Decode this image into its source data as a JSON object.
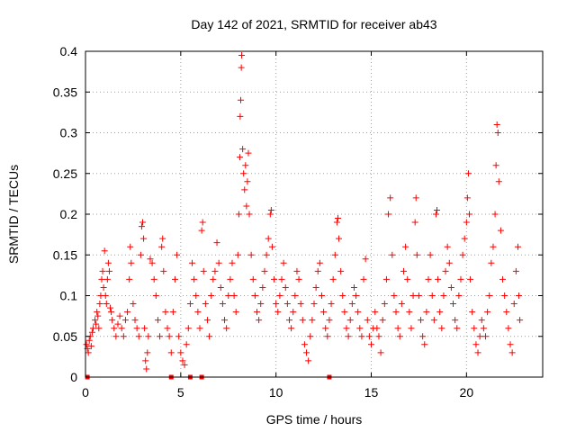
{
  "chart_data": {
    "type": "scatter",
    "title": "Day 142 of 2021, SRMTID for receiver ab43",
    "xlabel": "GPS time / hours",
    "ylabel": "SRMTID / TECUs",
    "xlim": [
      0,
      24
    ],
    "ylim": [
      0,
      0.4
    ],
    "xticks": [
      0,
      5,
      10,
      15,
      20
    ],
    "xtick_labels": [
      "0",
      "5",
      "10",
      "15",
      "20"
    ],
    "yticks": [
      0,
      0.05,
      0.1,
      0.15,
      0.2,
      0.25,
      0.3,
      0.35,
      0.4
    ],
    "ytick_labels": [
      "0",
      "0.05",
      "0.1",
      "0.15",
      "0.2",
      "0.25",
      "0.3",
      "0.35",
      "0.4"
    ],
    "grid": true,
    "marker": "plus",
    "color": "#ff0000",
    "series": [
      {
        "name": "SRMTID",
        "points": [
          [
            0.05,
            0.04
          ],
          [
            0.1,
            0.035
          ],
          [
            0.15,
            0.03
          ],
          [
            0.2,
            0.045
          ],
          [
            0.25,
            0.05
          ],
          [
            0.3,
            0.038
          ],
          [
            0.35,
            0.055
          ],
          [
            0.4,
            0.06
          ],
          [
            0.5,
            0.07
          ],
          [
            0.55,
            0.065
          ],
          [
            0.6,
            0.08
          ],
          [
            0.65,
            0.075
          ],
          [
            0.7,
            0.06
          ],
          [
            0.75,
            0.09
          ],
          [
            0.8,
            0.1
          ],
          [
            0.85,
            0.12
          ],
          [
            0.9,
            0.13
          ],
          [
            0.95,
            0.11
          ],
          [
            1.0,
            0.155
          ],
          [
            1.05,
            0.1
          ],
          [
            1.1,
            0.09
          ],
          [
            1.15,
            0.12
          ],
          [
            1.2,
            0.14
          ],
          [
            1.25,
            0.13
          ],
          [
            1.3,
            0.085
          ],
          [
            1.35,
            0.08
          ],
          [
            1.4,
            0.07
          ],
          [
            1.5,
            0.06
          ],
          [
            1.6,
            0.05
          ],
          [
            1.7,
            0.065
          ],
          [
            1.8,
            0.075
          ],
          [
            1.9,
            0.06
          ],
          [
            2.0,
            0.05
          ],
          [
            2.1,
            0.07
          ],
          [
            2.2,
            0.08
          ],
          [
            2.3,
            0.12
          ],
          [
            2.35,
            0.16
          ],
          [
            2.4,
            0.14
          ],
          [
            2.5,
            0.09
          ],
          [
            2.6,
            0.07
          ],
          [
            2.7,
            0.06
          ],
          [
            2.8,
            0.05
          ],
          [
            2.9,
            0.15
          ],
          [
            2.95,
            0.185
          ],
          [
            3.0,
            0.19
          ],
          [
            3.05,
            0.17
          ],
          [
            3.1,
            0.06
          ],
          [
            3.15,
            0.02
          ],
          [
            3.2,
            0.01
          ],
          [
            3.25,
            0.03
          ],
          [
            3.3,
            0.05
          ],
          [
            3.4,
            0.145
          ],
          [
            3.5,
            0.14
          ],
          [
            3.6,
            0.12
          ],
          [
            3.7,
            0.1
          ],
          [
            3.8,
            0.07
          ],
          [
            3.9,
            0.05
          ],
          [
            4.0,
            0.16
          ],
          [
            4.05,
            0.17
          ],
          [
            4.1,
            0.13
          ],
          [
            4.2,
            0.08
          ],
          [
            4.3,
            0.06
          ],
          [
            4.4,
            0.05
          ],
          [
            4.5,
            0.03
          ],
          [
            4.6,
            0.08
          ],
          [
            4.7,
            0.12
          ],
          [
            4.8,
            0.15
          ],
          [
            4.9,
            0.05
          ],
          [
            5.0,
            0.03
          ],
          [
            5.1,
            0.02
          ],
          [
            5.2,
            0.015
          ],
          [
            5.3,
            0.04
          ],
          [
            5.4,
            0.06
          ],
          [
            5.5,
            0.09
          ],
          [
            5.6,
            0.14
          ],
          [
            5.7,
            0.12
          ],
          [
            5.8,
            0.1
          ],
          [
            5.9,
            0.08
          ],
          [
            6.0,
            0.06
          ],
          [
            6.1,
            0.18
          ],
          [
            6.15,
            0.19
          ],
          [
            6.2,
            0.13
          ],
          [
            6.3,
            0.09
          ],
          [
            6.4,
            0.07
          ],
          [
            6.5,
            0.05
          ],
          [
            6.6,
            0.1
          ],
          [
            6.7,
            0.12
          ],
          [
            6.8,
            0.13
          ],
          [
            6.9,
            0.165
          ],
          [
            7.0,
            0.14
          ],
          [
            7.1,
            0.11
          ],
          [
            7.2,
            0.09
          ],
          [
            7.3,
            0.07
          ],
          [
            7.4,
            0.06
          ],
          [
            7.5,
            0.1
          ],
          [
            7.6,
            0.12
          ],
          [
            7.7,
            0.14
          ],
          [
            7.8,
            0.1
          ],
          [
            7.9,
            0.08
          ],
          [
            8.0,
            0.15
          ],
          [
            8.05,
            0.2
          ],
          [
            8.1,
            0.27
          ],
          [
            8.12,
            0.32
          ],
          [
            8.15,
            0.34
          ],
          [
            8.18,
            0.38
          ],
          [
            8.2,
            0.395
          ],
          [
            8.25,
            0.28
          ],
          [
            8.3,
            0.25
          ],
          [
            8.35,
            0.23
          ],
          [
            8.4,
            0.26
          ],
          [
            8.45,
            0.21
          ],
          [
            8.5,
            0.24
          ],
          [
            8.55,
            0.275
          ],
          [
            8.6,
            0.2
          ],
          [
            8.7,
            0.15
          ],
          [
            8.8,
            0.12
          ],
          [
            8.9,
            0.1
          ],
          [
            9.0,
            0.08
          ],
          [
            9.1,
            0.07
          ],
          [
            9.2,
            0.09
          ],
          [
            9.3,
            0.11
          ],
          [
            9.4,
            0.13
          ],
          [
            9.5,
            0.15
          ],
          [
            9.6,
            0.17
          ],
          [
            9.7,
            0.2
          ],
          [
            9.75,
            0.205
          ],
          [
            9.8,
            0.16
          ],
          [
            9.9,
            0.12
          ],
          [
            10.0,
            0.09
          ],
          [
            10.1,
            0.08
          ],
          [
            10.2,
            0.1
          ],
          [
            10.3,
            0.12
          ],
          [
            10.4,
            0.14
          ],
          [
            10.5,
            0.11
          ],
          [
            10.6,
            0.09
          ],
          [
            10.7,
            0.07
          ],
          [
            10.8,
            0.06
          ],
          [
            10.9,
            0.08
          ],
          [
            11.0,
            0.1
          ],
          [
            11.1,
            0.13
          ],
          [
            11.2,
            0.12
          ],
          [
            11.3,
            0.09
          ],
          [
            11.4,
            0.07
          ],
          [
            11.5,
            0.04
          ],
          [
            11.6,
            0.03
          ],
          [
            11.7,
            0.02
          ],
          [
            11.8,
            0.05
          ],
          [
            11.9,
            0.07
          ],
          [
            12.0,
            0.09
          ],
          [
            12.1,
            0.11
          ],
          [
            12.2,
            0.13
          ],
          [
            12.3,
            0.14
          ],
          [
            12.4,
            0.1
          ],
          [
            12.5,
            0.08
          ],
          [
            12.6,
            0.06
          ],
          [
            12.7,
            0.05
          ],
          [
            12.8,
            0.07
          ],
          [
            12.9,
            0.09
          ],
          [
            13.0,
            0.12
          ],
          [
            13.1,
            0.15
          ],
          [
            13.2,
            0.19
          ],
          [
            13.25,
            0.195
          ],
          [
            13.3,
            0.17
          ],
          [
            13.4,
            0.13
          ],
          [
            13.5,
            0.1
          ],
          [
            13.6,
            0.08
          ],
          [
            13.7,
            0.06
          ],
          [
            13.8,
            0.05
          ],
          [
            13.9,
            0.07
          ],
          [
            14.0,
            0.09
          ],
          [
            14.1,
            0.11
          ],
          [
            14.2,
            0.1
          ],
          [
            14.3,
            0.08
          ],
          [
            14.4,
            0.06
          ],
          [
            14.5,
            0.05
          ],
          [
            14.6,
            0.12
          ],
          [
            14.7,
            0.145
          ],
          [
            14.8,
            0.07
          ],
          [
            14.9,
            0.05
          ],
          [
            15.0,
            0.04
          ],
          [
            15.1,
            0.06
          ],
          [
            15.2,
            0.08
          ],
          [
            15.3,
            0.06
          ],
          [
            15.4,
            0.05
          ],
          [
            15.5,
            0.03
          ],
          [
            15.6,
            0.07
          ],
          [
            15.7,
            0.09
          ],
          [
            15.8,
            0.12
          ],
          [
            15.9,
            0.2
          ],
          [
            16.0,
            0.22
          ],
          [
            16.1,
            0.15
          ],
          [
            16.2,
            0.1
          ],
          [
            16.3,
            0.08
          ],
          [
            16.4,
            0.06
          ],
          [
            16.5,
            0.05
          ],
          [
            16.6,
            0.09
          ],
          [
            16.7,
            0.13
          ],
          [
            16.8,
            0.16
          ],
          [
            16.9,
            0.12
          ],
          [
            17.0,
            0.08
          ],
          [
            17.1,
            0.06
          ],
          [
            17.2,
            0.1
          ],
          [
            17.3,
            0.19
          ],
          [
            17.35,
            0.22
          ],
          [
            17.4,
            0.15
          ],
          [
            17.5,
            0.1
          ],
          [
            17.6,
            0.07
          ],
          [
            17.7,
            0.05
          ],
          [
            17.8,
            0.04
          ],
          [
            17.9,
            0.08
          ],
          [
            18.0,
            0.12
          ],
          [
            18.1,
            0.15
          ],
          [
            18.2,
            0.1
          ],
          [
            18.3,
            0.07
          ],
          [
            18.4,
            0.2
          ],
          [
            18.45,
            0.205
          ],
          [
            18.5,
            0.12
          ],
          [
            18.6,
            0.08
          ],
          [
            18.7,
            0.06
          ],
          [
            18.8,
            0.1
          ],
          [
            18.9,
            0.13
          ],
          [
            19.0,
            0.16
          ],
          [
            19.1,
            0.14
          ],
          [
            19.2,
            0.11
          ],
          [
            19.3,
            0.09
          ],
          [
            19.4,
            0.07
          ],
          [
            19.5,
            0.06
          ],
          [
            19.6,
            0.1
          ],
          [
            19.7,
            0.12
          ],
          [
            19.8,
            0.15
          ],
          [
            19.9,
            0.17
          ],
          [
            20.0,
            0.19
          ],
          [
            20.05,
            0.22
          ],
          [
            20.1,
            0.25
          ],
          [
            20.15,
            0.2
          ],
          [
            20.2,
            0.12
          ],
          [
            20.3,
            0.08
          ],
          [
            20.4,
            0.06
          ],
          [
            20.5,
            0.04
          ],
          [
            20.6,
            0.03
          ],
          [
            20.7,
            0.05
          ],
          [
            20.8,
            0.07
          ],
          [
            20.9,
            0.06
          ],
          [
            21.0,
            0.05
          ],
          [
            21.1,
            0.08
          ],
          [
            21.2,
            0.1
          ],
          [
            21.3,
            0.14
          ],
          [
            21.4,
            0.16
          ],
          [
            21.5,
            0.2
          ],
          [
            21.55,
            0.26
          ],
          [
            21.6,
            0.31
          ],
          [
            21.65,
            0.3
          ],
          [
            21.7,
            0.24
          ],
          [
            21.8,
            0.18
          ],
          [
            21.9,
            0.12
          ],
          [
            22.0,
            0.1
          ],
          [
            22.1,
            0.08
          ],
          [
            22.2,
            0.06
          ],
          [
            22.3,
            0.04
          ],
          [
            22.4,
            0.03
          ],
          [
            22.5,
            0.09
          ],
          [
            22.6,
            0.13
          ],
          [
            22.7,
            0.16
          ],
          [
            22.75,
            0.1
          ],
          [
            22.8,
            0.07
          ]
        ]
      }
    ],
    "zero_markers_x": [
      0.1,
      4.5,
      5.5,
      6.1,
      12.8
    ]
  }
}
